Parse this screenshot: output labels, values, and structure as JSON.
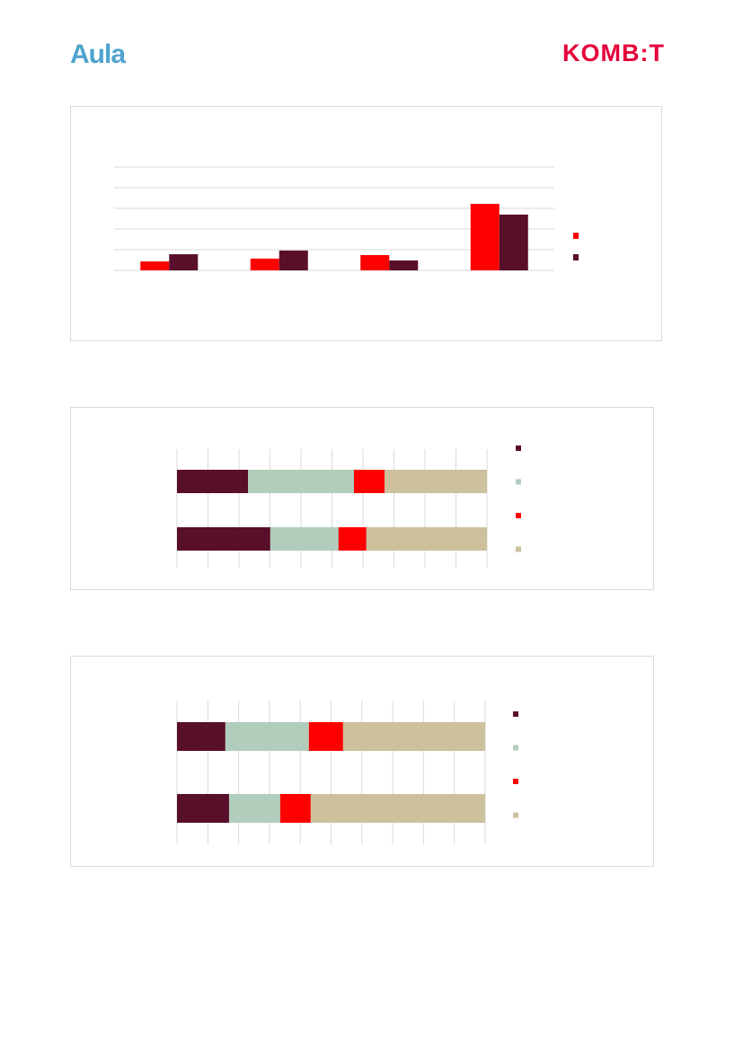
{
  "header": {
    "left_logo": "Aula",
    "right_logo": "KOMBIT"
  },
  "colors": {
    "red": "#ff0000",
    "maroon": "#590e29",
    "sage": "#b1cdbb",
    "tan": "#cdc09d",
    "grid": "#d9d9d9"
  },
  "chart_data": [
    {
      "type": "bar",
      "grid": true,
      "legend": "right",
      "ylim": [
        0,
        5
      ],
      "series": [
        {
          "color": "#ff0000",
          "values": [
            0.43,
            0.57,
            0.74,
            3.22
          ]
        },
        {
          "color": "#590e29",
          "values": [
            0.78,
            0.96,
            0.48,
            2.7
          ]
        }
      ]
    },
    {
      "type": "bar",
      "orientation": "horizontal",
      "stacked": true,
      "grid": true,
      "legend": "right",
      "xlim": [
        0,
        100
      ],
      "series": [
        {
          "color": "#590e29",
          "values": [
            22.9,
            30.1
          ]
        },
        {
          "color": "#b1cdbb",
          "values": [
            34.2,
            22.0
          ]
        },
        {
          "color": "#ff0000",
          "values": [
            9.9,
            9.0
          ]
        },
        {
          "color": "#cdc09d",
          "values": [
            33.0,
            38.9
          ]
        }
      ]
    },
    {
      "type": "bar",
      "orientation": "horizontal",
      "stacked": true,
      "grid": true,
      "legend": "right",
      "xlim": [
        0,
        100
      ],
      "series": [
        {
          "color": "#590e29",
          "values": [
            15.7,
            16.9
          ]
        },
        {
          "color": "#b1cdbb",
          "values": [
            27.1,
            16.6
          ]
        },
        {
          "color": "#ff0000",
          "values": [
            11.1,
            9.9
          ]
        },
        {
          "color": "#cdc09d",
          "values": [
            46.1,
            56.6
          ]
        }
      ]
    }
  ]
}
